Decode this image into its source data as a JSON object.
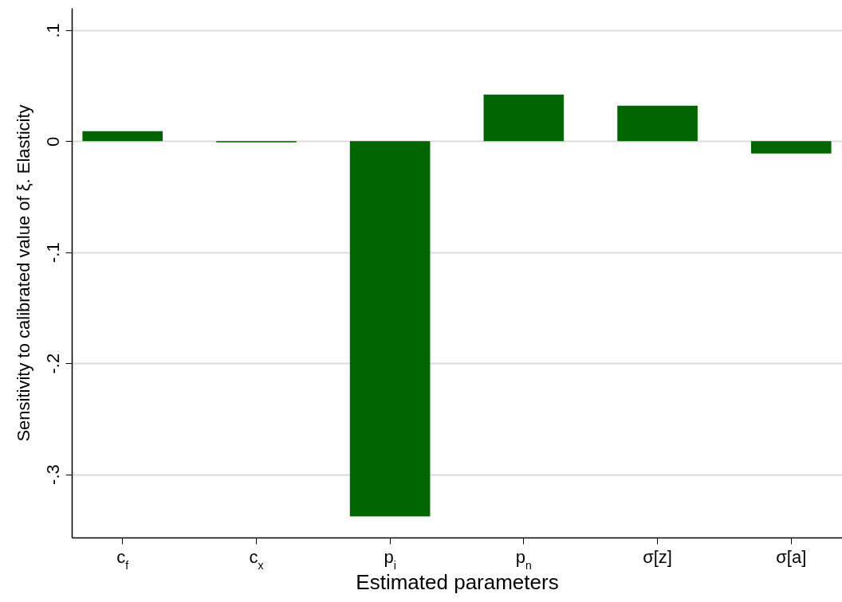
{
  "chart_data": {
    "type": "bar",
    "xlabel": "Estimated parameters",
    "ylabel": "Sensitivity to calibrated value of ξ. Elasticity",
    "categories": [
      "c$_{f}$",
      "c$_{x}$",
      "p$_{i}$",
      "p$_{n}$",
      "σ[z]",
      "σ[a]"
    ],
    "values": [
      0.009,
      -0.001,
      -0.338,
      0.042,
      0.032,
      -0.011
    ],
    "color": "#006400",
    "ylim": [
      -0.357,
      0.12
    ],
    "yticks": [
      {
        "value": -0.3,
        "label": "-.3"
      },
      {
        "value": -0.2,
        "label": "-.2"
      },
      {
        "value": -0.1,
        "label": "-.1"
      },
      0,
      {
        "value": 0.1,
        "label": ".1"
      }
    ],
    "grid": "y"
  }
}
